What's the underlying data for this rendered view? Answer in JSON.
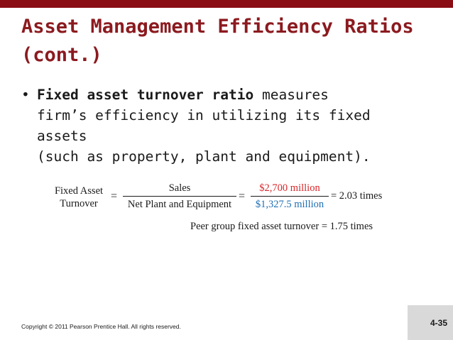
{
  "slide": {
    "title_line1": "Asset Management Efficiency Ratios",
    "title_line2": "(cont.)",
    "bullet": {
      "bold_term": "Fixed asset turnover ratio",
      "line1_rest": " measures",
      "line2": "firm’s efficiency in utilizing its fixed assets",
      "line3": "(such as property, plant and equipment)."
    },
    "formula": {
      "left_line1": "Fixed Asset",
      "left_line2": "Turnover",
      "equals": "=",
      "frac1_num": "Sales",
      "frac1_den": "Net Plant and Equipment",
      "frac2_num": "$2,700 million",
      "frac2_den": "$1,327.5 million",
      "result": "= 2.03 times",
      "peer": "Peer group fixed asset turnover = 1.75 times"
    },
    "copyright": "Copyright © 2011 Pearson Prentice Hall. All rights reserved.",
    "slide_number": "4-35"
  },
  "colors": {
    "top_bar": "#8a0c14",
    "title": "#8b1a1f",
    "numerator": "#d8262a",
    "denominator": "#1f6fb5",
    "footer_box": "#d9d9d9"
  }
}
